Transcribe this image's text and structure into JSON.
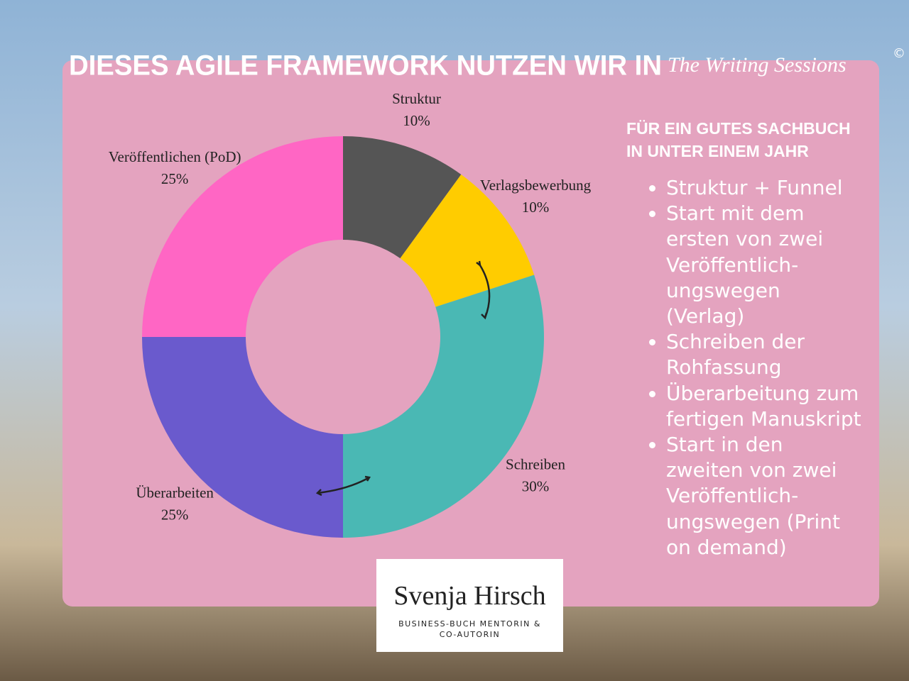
{
  "chart_data": {
    "type": "donut",
    "title": "DIESES AGILE FRAMEWORK NUTZEN WIR IN",
    "title_brand": "The Writing Sessions",
    "title_mark": "©",
    "categories": [
      "Struktur",
      "Verlagsbewerbung",
      "Schreiben",
      "Überarbeiten",
      "Veröffentlichen (PoD)"
    ],
    "values": [
      10,
      10,
      30,
      25,
      25
    ],
    "value_labels": [
      "10%",
      "10%",
      "30%",
      "25%",
      "25%"
    ],
    "colors": [
      "#555555",
      "#ffcc00",
      "#4ab8b4",
      "#6a5acd",
      "#ff66c4"
    ]
  },
  "sidebar": {
    "heading": [
      "FÜR EIN GUTES SACHBUCH",
      "IN UNTER EINEM JAHR"
    ],
    "bullets": [
      [
        "Struktur + Funnel"
      ],
      [
        "Start mit dem",
        "ersten von zwei",
        "Veröffentlich-",
        "ungswegen",
        "(Verlag)"
      ],
      [
        "Schreiben der",
        "Rohfassung"
      ],
      [
        "Überarbeitung zum",
        "fertigen Manuskript"
      ],
      [
        "Start in den",
        "zweiten von zwei",
        "Veröffentlich-",
        "ungswegen (Print",
        "on demand)"
      ]
    ]
  },
  "logo": {
    "name": "Svenja Hirsch",
    "tagline": [
      "BUSINESS-BUCH MENTORIN &",
      "CO-AUTORIN"
    ]
  }
}
